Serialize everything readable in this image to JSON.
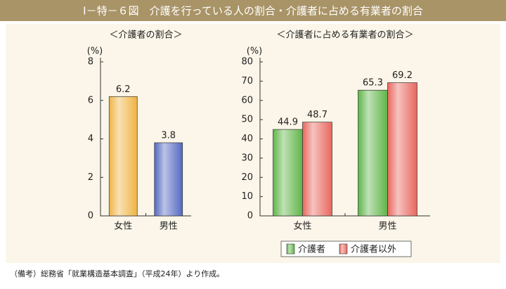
{
  "header": {
    "title": "Ⅰ－特－６図　介護を行っている人の割合・介護者に占める有業者の割合"
  },
  "note": "（備考）総務省「就業構造基本調査」（平成24年）より作成。",
  "chart_data": [
    {
      "type": "bar",
      "title": "＜介護者の割合＞",
      "y_label": "(%)",
      "categories": [
        "女性",
        "男性"
      ],
      "values": [
        6.2,
        3.8
      ],
      "colors": [
        "#efb444",
        "#5468c0"
      ],
      "ylim": [
        0,
        8
      ],
      "yticks": [
        0,
        2,
        4,
        6,
        8
      ]
    },
    {
      "type": "bar",
      "title": "＜介護者に占める有業者の割合＞",
      "y_label": "(%)",
      "categories": [
        "女性",
        "男性"
      ],
      "series": [
        {
          "name": "介護者",
          "color": "#5fb548",
          "values": [
            44.9,
            65.3
          ]
        },
        {
          "name": "介護者以外",
          "color": "#e8675e",
          "values": [
            48.7,
            69.2
          ]
        }
      ],
      "ylim": [
        0,
        80
      ],
      "yticks": [
        0,
        10,
        20,
        30,
        40,
        50,
        60,
        70,
        80
      ],
      "legend": "bottom"
    }
  ]
}
